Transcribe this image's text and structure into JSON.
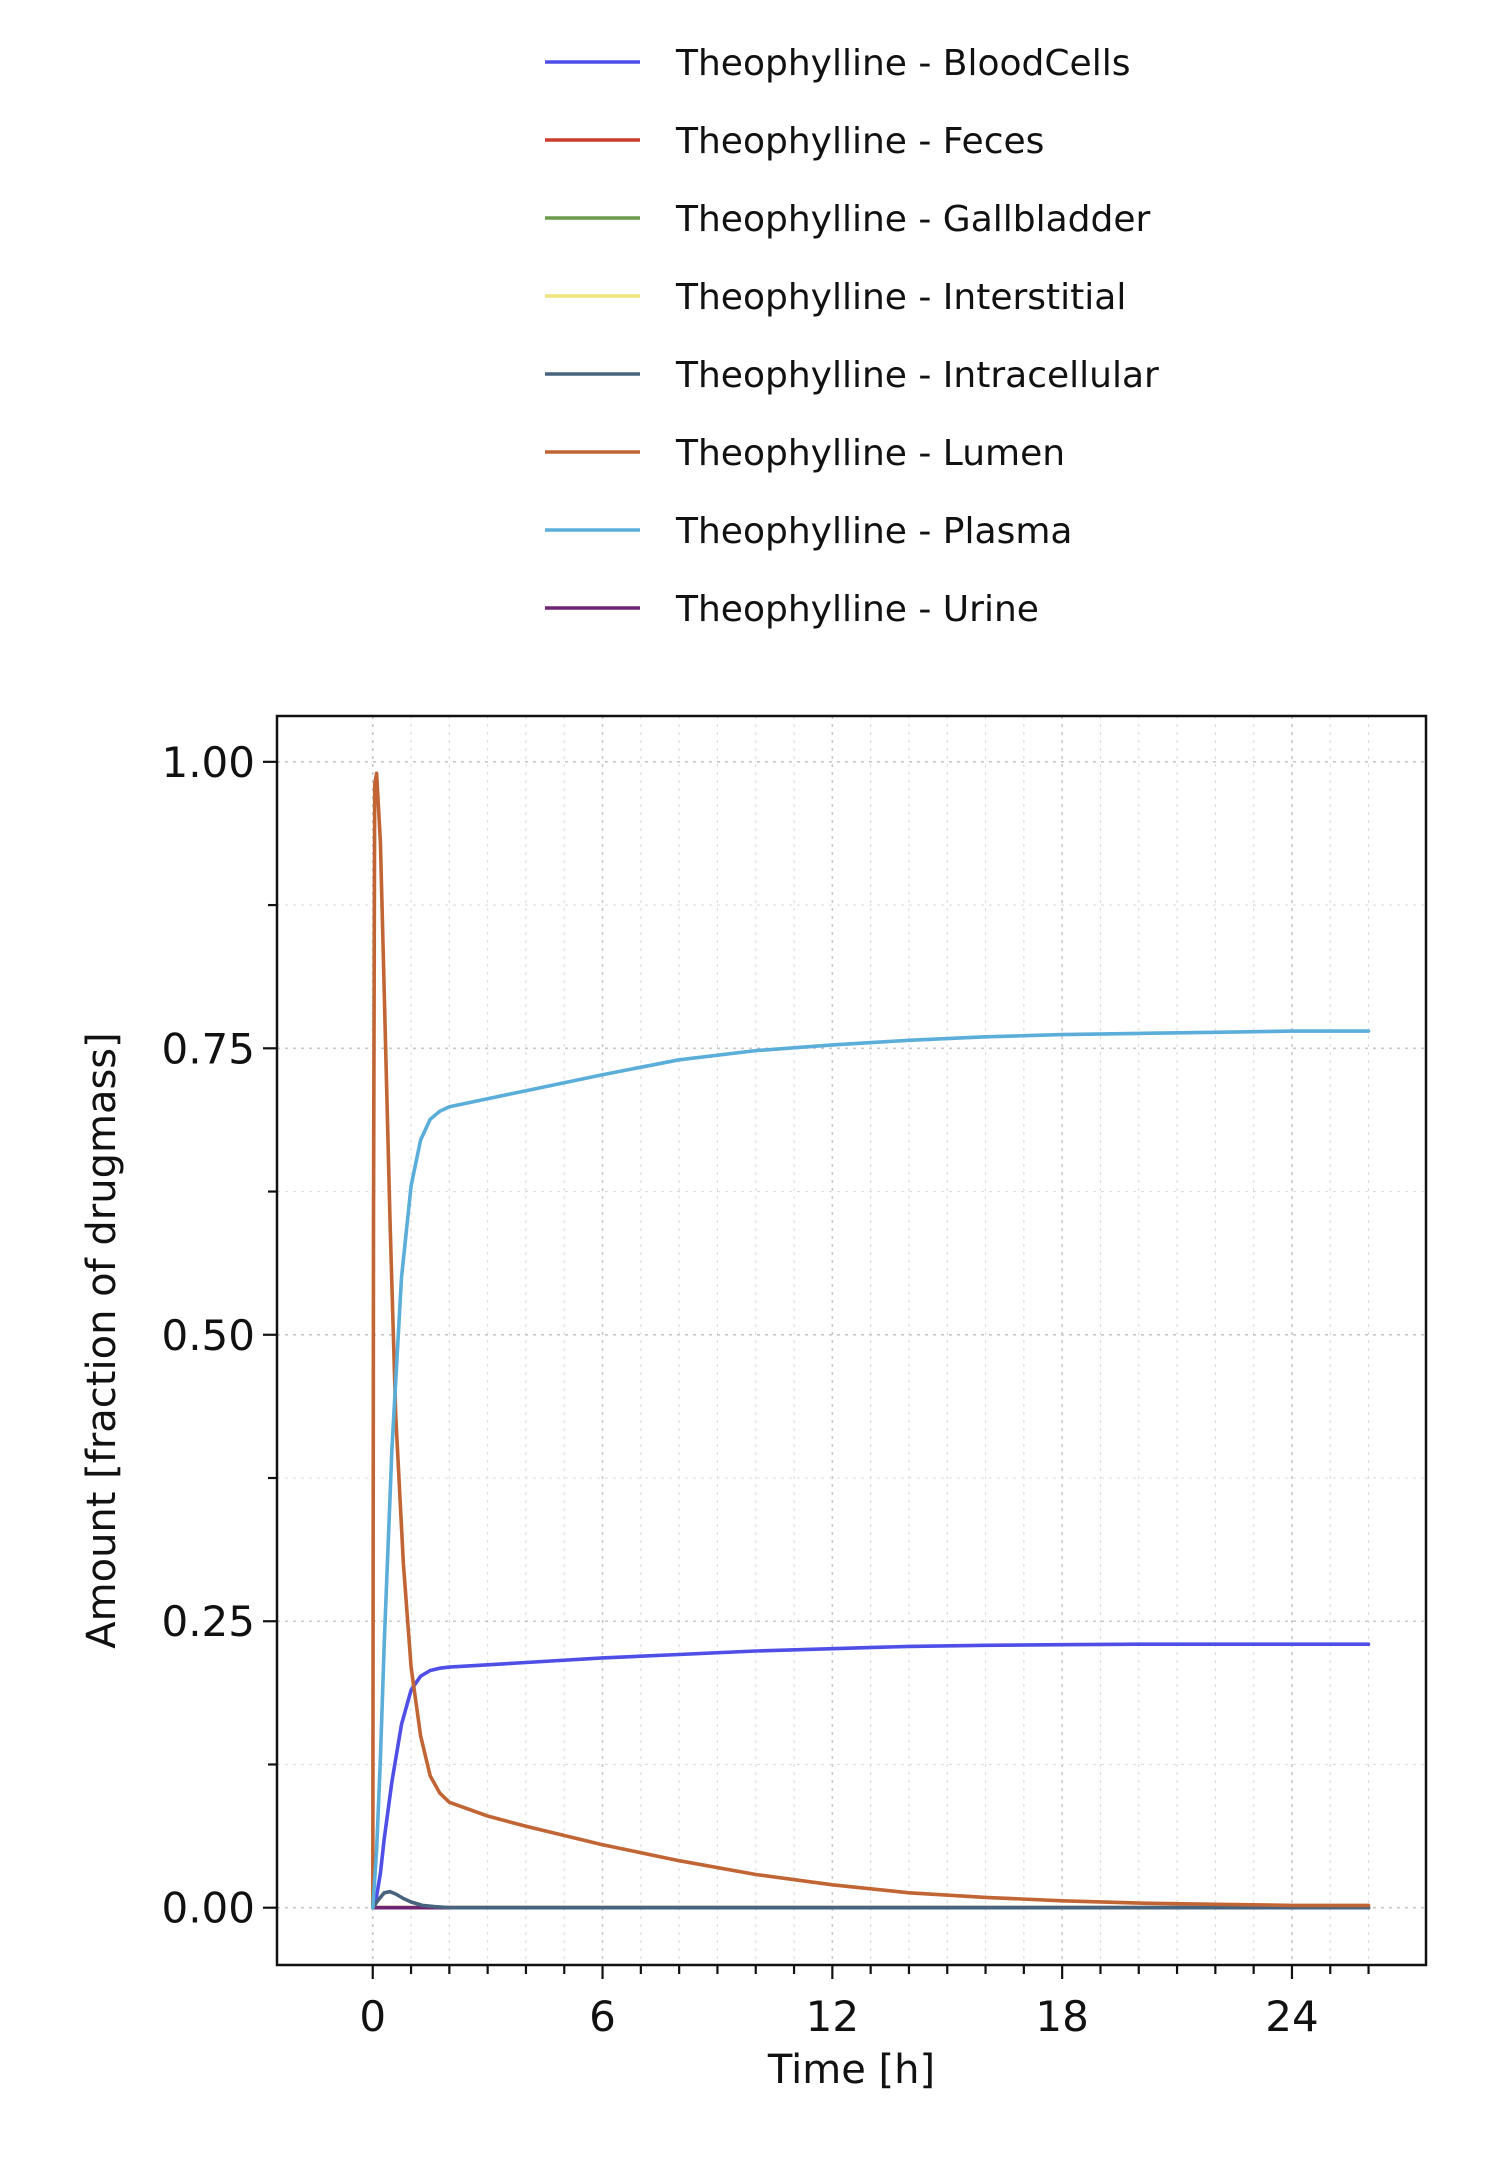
{
  "chart_data": {
    "type": "line",
    "title": "",
    "xlabel": "Time [h]",
    "ylabel": "Amount [fraction of drugmass]",
    "xlim": [
      -2.5,
      27.5
    ],
    "ylim": [
      -0.05,
      1.04
    ],
    "xticks": [
      0,
      6,
      12,
      18,
      24
    ],
    "xtick_labels": [
      "0",
      "6",
      "12",
      "18",
      "24"
    ],
    "yticks": [
      0,
      0.25,
      0.5,
      0.75,
      1.0
    ],
    "ytick_labels": [
      "0.00",
      "0.25",
      "0.50",
      "0.75",
      "1.00"
    ],
    "grid": true,
    "legend_position": "top",
    "series": [
      {
        "name": "Theophylline - BloodCells",
        "color": "#4f4fe8",
        "x": [
          0,
          0.1,
          0.2,
          0.3,
          0.5,
          0.75,
          1,
          1.25,
          1.5,
          1.75,
          2,
          3,
          4,
          6,
          8,
          10,
          12,
          14,
          16,
          18,
          20,
          22,
          24,
          26
        ],
        "y": [
          0,
          0.01,
          0.03,
          0.06,
          0.11,
          0.16,
          0.19,
          0.202,
          0.207,
          0.209,
          0.21,
          0.212,
          0.214,
          0.218,
          0.221,
          0.224,
          0.226,
          0.228,
          0.229,
          0.2295,
          0.23,
          0.23,
          0.23,
          0.23
        ]
      },
      {
        "name": "Theophylline - Feces",
        "color": "#cc3a2b",
        "x": [
          0,
          26
        ],
        "y": [
          0,
          0
        ]
      },
      {
        "name": "Theophylline - Gallbladder",
        "color": "#6a9a4a",
        "x": [
          0,
          26
        ],
        "y": [
          0,
          0
        ]
      },
      {
        "name": "Theophylline - Interstitial",
        "color": "#f0e27a",
        "x": [
          0,
          26
        ],
        "y": [
          0,
          0
        ]
      },
      {
        "name": "Theophylline - Intracellular",
        "color": "#48637e",
        "x": [
          0,
          0.15,
          0.3,
          0.45,
          0.6,
          0.8,
          1,
          1.3,
          1.6,
          2,
          3,
          26
        ],
        "y": [
          0,
          0.007,
          0.013,
          0.014,
          0.012,
          0.008,
          0.005,
          0.002,
          0.001,
          0,
          0,
          0
        ]
      },
      {
        "name": "Theophylline - Lumen",
        "color": "#c26534",
        "x": [
          0,
          0.02,
          0.05,
          0.1,
          0.2,
          0.3,
          0.45,
          0.6,
          0.8,
          1,
          1.25,
          1.5,
          1.75,
          2,
          3,
          4,
          6,
          8,
          10,
          12,
          14,
          16,
          18,
          20,
          22,
          24,
          26
        ],
        "y": [
          0,
          0.6,
          0.98,
          0.99,
          0.93,
          0.8,
          0.6,
          0.43,
          0.3,
          0.21,
          0.15,
          0.115,
          0.1,
          0.092,
          0.08,
          0.071,
          0.055,
          0.041,
          0.029,
          0.02,
          0.013,
          0.009,
          0.006,
          0.004,
          0.003,
          0.002,
          0.002
        ]
      },
      {
        "name": "Theophylline - Plasma",
        "color": "#5aaed9",
        "x": [
          0,
          0.1,
          0.2,
          0.3,
          0.5,
          0.75,
          1,
          1.25,
          1.5,
          1.75,
          2,
          3,
          4,
          6,
          8,
          10,
          12,
          14,
          16,
          18,
          20,
          22,
          24,
          26
        ],
        "y": [
          0,
          0.05,
          0.13,
          0.23,
          0.4,
          0.55,
          0.63,
          0.67,
          0.688,
          0.695,
          0.699,
          0.706,
          0.713,
          0.727,
          0.74,
          0.748,
          0.753,
          0.757,
          0.76,
          0.762,
          0.763,
          0.764,
          0.765,
          0.765
        ]
      },
      {
        "name": "Theophylline - Urine",
        "color": "#6e2470",
        "x": [
          0,
          26
        ],
        "y": [
          0,
          0
        ]
      }
    ]
  }
}
